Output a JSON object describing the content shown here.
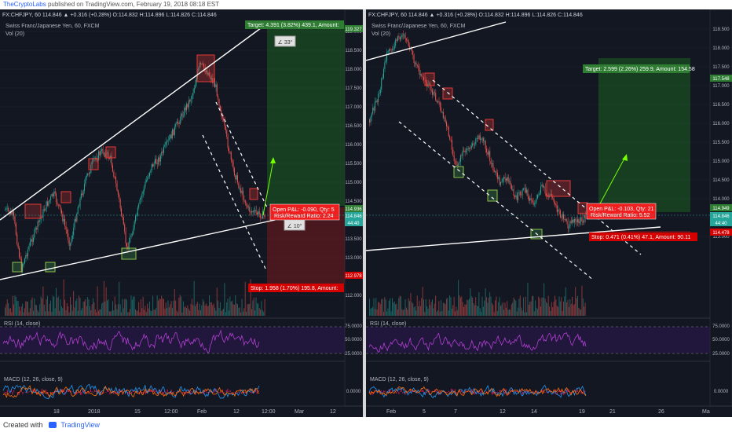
{
  "header": {
    "user": "TheCryptoLabs",
    "text": "published on TradingView.com, February 19, 2018 08:18 EST"
  },
  "footer": {
    "created_with": "Created with",
    "brand": "TradingView"
  },
  "colors": {
    "bg": "#131722",
    "up": "#26a69a",
    "down": "#ef5350",
    "accent": "#2962ff",
    "rsi": "#9c27b0",
    "macd": "#2196f3",
    "signal": "#ff6d00"
  },
  "left": {
    "symbol_line": "FX:CHFJPY, 60  114.846 ▲ +0.316 (+0.28%)  O:114.832  H:114.896  L:114.826  C:114.846",
    "title": "Swiss Franc/Japanese Yen, 60, FXCM",
    "vol": "Vol (20)",
    "target_label": "Target: 4.391 (3.82%) 439.1, Amount:",
    "pnl_label": "Open P&L: -0.090, Qty: 5",
    "rr_label": "Risk/Reward Ratio: 2.24",
    "stop_label": "Stop: 1.958 (1.70%) 195.8, Amount:",
    "angle1": "∠ 33°",
    "angle2": "∠ 10°",
    "price_ticks": [
      "119.000",
      "118.500",
      "118.000",
      "117.500",
      "117.000",
      "116.500",
      "116.000",
      "115.500",
      "115.000",
      "114.500",
      "114.000",
      "113.500",
      "113.000",
      "112.500",
      "112.000"
    ],
    "tag_target": "119.327",
    "tag_a": "114.936",
    "tag_b": "114.846",
    "tag_c": "44:40",
    "tag_stop": "112.978",
    "rsi_label": "RSI (14, close)",
    "rsi_ticks": [
      "75.0000",
      "50.0000",
      "25.0000"
    ],
    "macd_label": "MACD (12, 26, close, 9)",
    "macd_tick": "0.0000",
    "time_ticks": [
      "18",
      "2018",
      "15",
      "12:00",
      "Feb",
      "12",
      "12:00",
      "Mar",
      "12"
    ]
  },
  "right": {
    "symbol_line": "FX:CHFJPY, 60  114.846 ▲ +0.316 (+0.28%)  O:114.832  H:114.896  L:114.826  C:114.846",
    "title": "Swiss Franc/Japanese Yen, 60, FXCM",
    "vol": "Vol (20)",
    "target_label": "Target: 2.599 (2.26%) 259.9, Amount: 154.58",
    "pnl_label": "Open P&L: -0.103, Qty: 21",
    "rr_label": "Risk/Reward Ratio: 5.52",
    "stop_label": "Stop: 0.471 (0.41%) 47.1, Amount: 90.11",
    "price_ticks": [
      "118.500",
      "118.000",
      "117.500",
      "117.000",
      "116.500",
      "116.000",
      "115.500",
      "115.000",
      "114.500",
      "114.000",
      "113.500",
      "113.000"
    ],
    "tag_target": "117.548",
    "tag_a": "114.949",
    "tag_b": "114.846",
    "tag_c": "44:40",
    "tag_stop": "114.478",
    "rsi_label": "RSI (14, close)",
    "rsi_ticks": [
      "75.0000",
      "50.0000",
      "25.0000"
    ],
    "macd_label": "MACD (12, 26, close, 9)",
    "macd_tick": "0.0000",
    "time_ticks": [
      "Feb",
      "5",
      "7",
      "12",
      "14",
      "19",
      "21",
      "26",
      "Ma"
    ]
  }
}
